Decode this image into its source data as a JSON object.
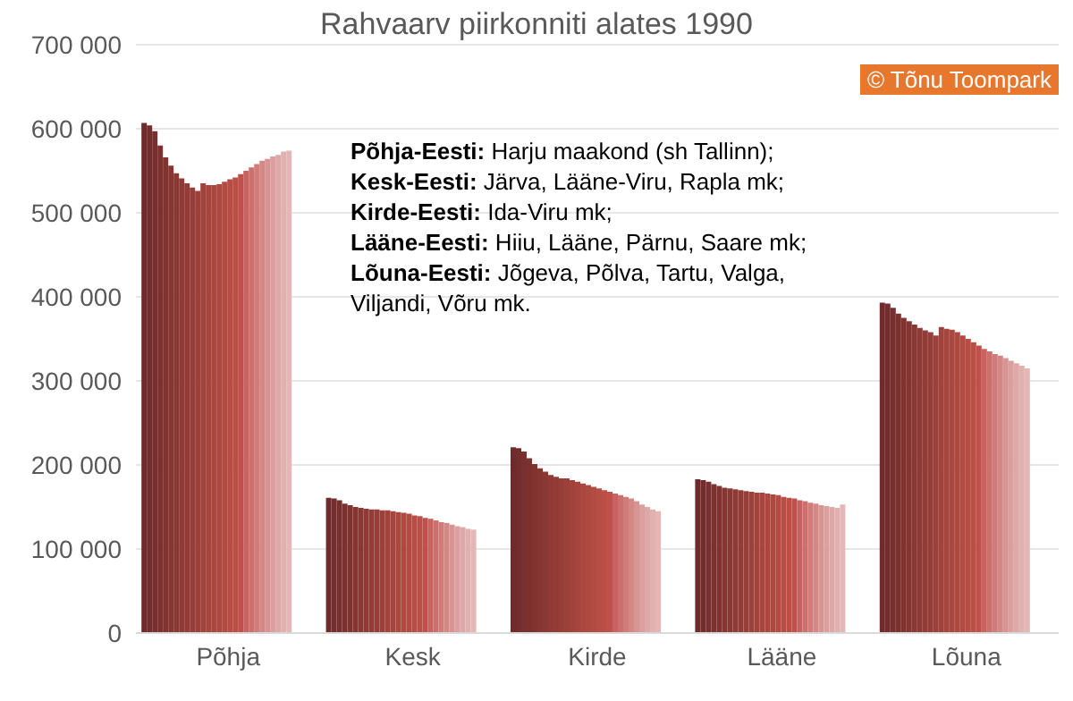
{
  "chart_data": {
    "type": "bar",
    "title": "Rahvaarv piirkonniti alates 1990",
    "categories": [
      "Põhja",
      "Kesk",
      "Kirde",
      "Lääne",
      "Lõuna"
    ],
    "series": [
      {
        "color": "#6f2b2b",
        "values": [
          607000,
          161000,
          221000,
          183000,
          393000
        ]
      },
      {
        "color": "#742d2d",
        "values": [
          604000,
          160000,
          220000,
          182000,
          392000
        ]
      },
      {
        "color": "#782f2f",
        "values": [
          597000,
          158000,
          216000,
          180000,
          387000
        ]
      },
      {
        "color": "#7d312f",
        "values": [
          580000,
          154000,
          208000,
          177000,
          380000
        ]
      },
      {
        "color": "#813330",
        "values": [
          566000,
          152000,
          201000,
          175000,
          375000
        ]
      },
      {
        "color": "#863632",
        "values": [
          556000,
          150000,
          196000,
          173000,
          371000
        ]
      },
      {
        "color": "#8a3834",
        "values": [
          547000,
          149000,
          192000,
          172000,
          367000
        ]
      },
      {
        "color": "#8f3a35",
        "values": [
          541000,
          148000,
          188000,
          171000,
          363000
        ]
      },
      {
        "color": "#933c37",
        "values": [
          535000,
          147000,
          186000,
          170000,
          360000
        ]
      },
      {
        "color": "#983e38",
        "values": [
          530000,
          147000,
          184000,
          169000,
          358000
        ]
      },
      {
        "color": "#9c403a",
        "values": [
          526000,
          146000,
          184000,
          168000,
          354000
        ]
      },
      {
        "color": "#a1423b",
        "values": [
          535000,
          146000,
          182000,
          167000,
          364000
        ]
      },
      {
        "color": "#a5453d",
        "values": [
          533000,
          145000,
          180000,
          167000,
          362000
        ]
      },
      {
        "color": "#aa473f",
        "values": [
          533000,
          144000,
          178000,
          166000,
          361000
        ]
      },
      {
        "color": "#ae4940",
        "values": [
          534000,
          143000,
          176000,
          165000,
          358000
        ]
      },
      {
        "color": "#b34b42",
        "values": [
          537000,
          142000,
          174000,
          164000,
          354000
        ]
      },
      {
        "color": "#b74d44",
        "values": [
          540000,
          140000,
          172000,
          162000,
          350000
        ]
      },
      {
        "color": "#bc4f45",
        "values": [
          542000,
          139000,
          170000,
          161000,
          346000
        ]
      },
      {
        "color": "#c0504d",
        "values": [
          546000,
          137000,
          168000,
          160000,
          342000
        ]
      },
      {
        "color": "#c86361",
        "values": [
          550000,
          136000,
          166000,
          158000,
          338000
        ]
      },
      {
        "color": "#cc706e",
        "values": [
          554000,
          134000,
          164000,
          157000,
          335000
        ]
      },
      {
        "color": "#cf7c7a",
        "values": [
          558000,
          132000,
          162000,
          155000,
          332000
        ]
      },
      {
        "color": "#d38886",
        "values": [
          562000,
          131000,
          160000,
          154000,
          330000
        ]
      },
      {
        "color": "#d69492",
        "values": [
          564000,
          129000,
          157000,
          152000,
          327000
        ]
      },
      {
        "color": "#da9f9e",
        "values": [
          567000,
          127000,
          153000,
          151000,
          324000
        ]
      },
      {
        "color": "#dda9a8",
        "values": [
          569000,
          126000,
          150000,
          150000,
          321000
        ]
      },
      {
        "color": "#e1b1b0",
        "values": [
          573000,
          124000,
          147000,
          149000,
          318000
        ]
      },
      {
        "color": "#e4b7b6",
        "values": [
          574000,
          123000,
          145000,
          153000,
          315000
        ]
      }
    ],
    "ylim": [
      0,
      700000
    ],
    "yticks": [
      {
        "value": 0,
        "label": "0"
      },
      {
        "value": 100000,
        "label": "100 000"
      },
      {
        "value": 200000,
        "label": "200 000"
      },
      {
        "value": 300000,
        "label": "300 000"
      },
      {
        "value": 400000,
        "label": "400 000"
      },
      {
        "value": 500000,
        "label": "500 000"
      },
      {
        "value": 600000,
        "label": "600 000"
      },
      {
        "value": 700000,
        "label": "700 000"
      }
    ],
    "grid": "y",
    "legend": false,
    "annotations": [
      "Põhja-Eesti: Harju maakond (sh Tallinn);",
      "Kesk-Eesti: Järva, Lääne-Viru, Rapla mk;",
      "Kirde-Eesti: Ida-Viru mk;",
      "Lääne-Eesti: Hiiu, Lääne, Pärnu, Saare mk;",
      "Lõuna-Eesti: Jõgeva, Põlva, Tartu, Valga, Viljandi, Võru mk.",
      "© Tõnu Toompark"
    ]
  }
}
